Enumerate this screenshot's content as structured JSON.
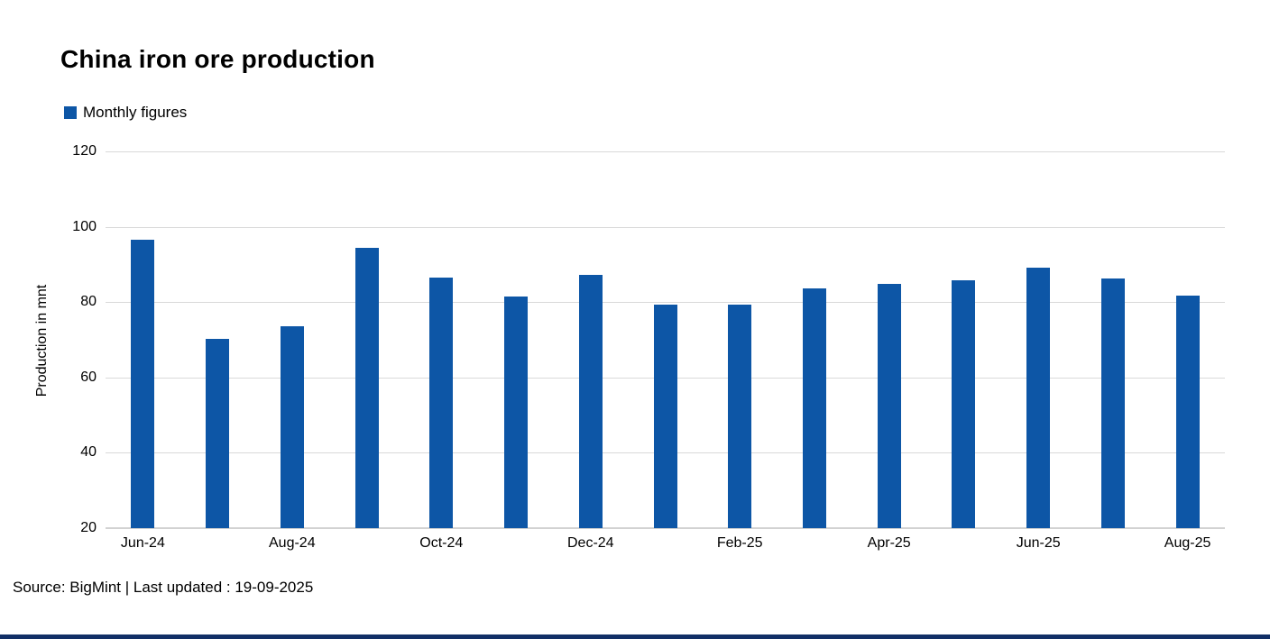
{
  "title": "China iron ore production",
  "legend": {
    "label": "Monthly figures"
  },
  "y_axis": {
    "title": "Production in mnt",
    "ticks": [
      120,
      100,
      80,
      60,
      40,
      20
    ]
  },
  "x_axis": {
    "visible_labels": [
      "Jun-24",
      "Aug-24",
      "Oct-24",
      "Dec-24",
      "Feb-25",
      "Apr-25",
      "Jun-25",
      "Aug-25"
    ]
  },
  "source": "Source: BigMint | Last updated : 19-09-2025",
  "colors": {
    "bar": "#0d56a6",
    "gridline": "#d9d9d9",
    "axis_line": "#d2d2d2",
    "footer_bar": "#112f66",
    "text": "#000000"
  },
  "chart_data": {
    "type": "bar",
    "title": "China iron ore production",
    "series_name": "Monthly figures",
    "xlabel": "",
    "ylabel": "Production in mnt",
    "ylim": [
      20,
      120
    ],
    "yticks": [
      20,
      40,
      60,
      80,
      100,
      120
    ],
    "grid": "horizontal",
    "legend_position": "top-left",
    "categories": [
      "Jun-24",
      "Jul-24",
      "Aug-24",
      "Sep-24",
      "Oct-24",
      "Nov-24",
      "Dec-24",
      "Jan-25",
      "Feb-25",
      "Mar-25",
      "Apr-25",
      "May-25",
      "Jun-25",
      "Jul-25",
      "Aug-25"
    ],
    "values": [
      96.6,
      70.3,
      73.7,
      94.4,
      86.4,
      81.4,
      87.3,
      79.3,
      79.3,
      83.6,
      84.9,
      85.7,
      89.2,
      86.3,
      81.7
    ],
    "x_tick_label_every": 2
  }
}
